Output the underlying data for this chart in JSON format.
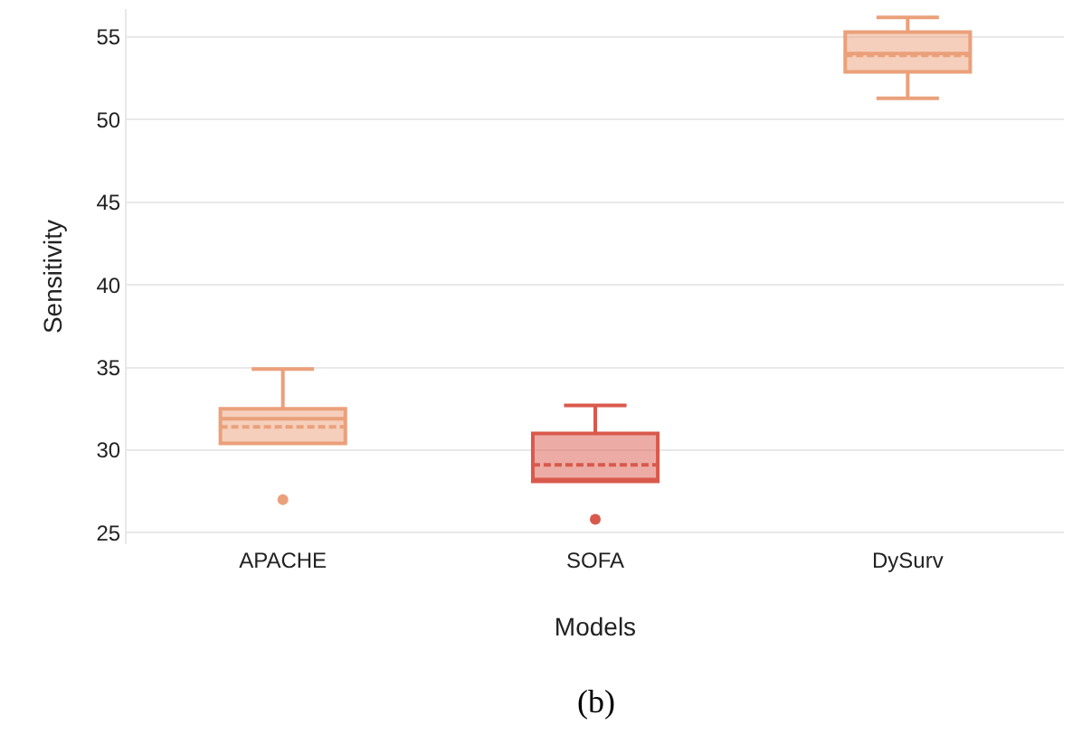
{
  "chart_data": {
    "type": "box",
    "xlabel": "Models",
    "ylabel": "Sensitivity",
    "categories": [
      "APACHE",
      "SOFA",
      "DySurv"
    ],
    "colors": [
      "#eba07a",
      "#d9594c",
      "#eba07a"
    ],
    "boxes": [
      {
        "low": 30.4,
        "q1": 30.4,
        "median": 31.9,
        "q3": 32.5,
        "high": 34.9,
        "mean": 31.4,
        "outliers": [
          27.0
        ]
      },
      {
        "low": 28.1,
        "q1": 28.1,
        "median": 28.1,
        "q3": 31.0,
        "high": 32.7,
        "mean": 29.1,
        "outliers": [
          25.8
        ]
      },
      {
        "low": 51.3,
        "q1": 52.9,
        "median": 54.0,
        "q3": 55.3,
        "high": 56.2,
        "mean": 53.9
      }
    ],
    "ylim": [
      24.3,
      56.7
    ],
    "yticks": [
      25,
      30,
      35,
      40,
      45,
      50,
      55
    ],
    "grid": "y",
    "annotations": [
      "(b)"
    ]
  }
}
